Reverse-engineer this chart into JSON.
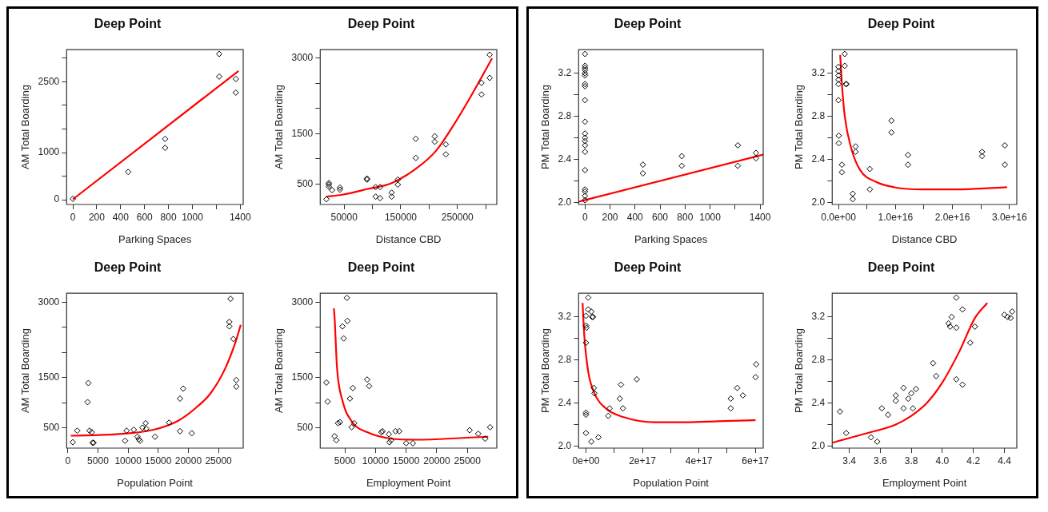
{
  "chart_data": [
    {
      "type": "scatter",
      "title": "Deep Point",
      "xlabel": "Parking Spaces",
      "ylabel": "AM Total Boarding",
      "marker": "diamond",
      "xlim": [
        -52,
        1425
      ],
      "ylim": [
        -100,
        3180
      ],
      "xticks": [
        0,
        200,
        400,
        600,
        800,
        1000,
        {
          "value": 1200,
          "label": null
        },
        1400
      ],
      "yticks": [
        0,
        {
          "value": 500,
          "label": null
        },
        1000,
        {
          "value": 1500,
          "label": null
        },
        {
          "value": 2000,
          "label": null
        },
        2500,
        {
          "value": 3000,
          "label": null
        }
      ],
      "series": [
        {
          "type": "scatter",
          "color": "#000000",
          "x": [
            0,
            463,
            772,
            772,
            1224,
            1224,
            1363,
            1363
          ],
          "values": [
            20,
            590,
            1290,
            1100,
            3090,
            2610,
            2560,
            2270
          ]
        },
        {
          "type": "line",
          "color": "#ff0000",
          "marker": "none",
          "x": [
            0,
            1386
          ],
          "values": [
            10,
            2730
          ]
        }
      ]
    },
    {
      "type": "scatter",
      "title": "Deep Point",
      "xlabel": "Distance CBD",
      "ylabel": "AM Total Boarding",
      "marker": "diamond",
      "xlim": [
        7800,
        319600
      ],
      "ylim": [
        95,
        3170
      ],
      "xticks": [
        50000,
        {
          "value": 100000,
          "label": null
        },
        150000,
        {
          "value": 200000,
          "label": null
        },
        250000,
        {
          "value": 300000,
          "label": null
        }
      ],
      "yticks": [
        500,
        {
          "value": 1000,
          "label": null
        },
        1500,
        {
          "value": 2000,
          "label": null
        },
        {
          "value": 2500,
          "label": null
        },
        3000
      ],
      "series": [
        {
          "type": "scatter",
          "color": "#000000",
          "x": [
            18700,
            23000,
            23000,
            23000,
            28700,
            42600,
            42600,
            90400,
            90400,
            105700,
            105700,
            113500,
            113500,
            133900,
            133900,
            144800,
            144800,
            176500,
            176500,
            210000,
            210000,
            229600,
            229600,
            292600,
            292600,
            307000,
            307000
          ],
          "values": [
            200,
            520,
            450,
            490,
            380,
            430,
            390,
            610,
            590,
            440,
            250,
            440,
            220,
            330,
            250,
            590,
            490,
            1400,
            1020,
            1450,
            1340,
            1290,
            1090,
            2510,
            2280,
            3070,
            2610
          ]
        },
        {
          "type": "line",
          "color": "#ff0000",
          "marker": "none",
          "x": [
            18700,
            47000,
            90400,
            133900,
            177400,
            212200,
            242600,
            273000,
            311300
          ],
          "values": [
            250,
            290,
            400,
            520,
            810,
            1160,
            1660,
            2230,
            3000
          ]
        }
      ]
    },
    {
      "type": "scatter",
      "title": "Deep Point",
      "xlabel": "Population Point",
      "ylabel": "AM Total Boarding",
      "marker": "diamond",
      "xlim": [
        -200,
        29100
      ],
      "ylim": [
        93,
        3180
      ],
      "xticks": [
        0,
        5000,
        10000,
        15000,
        20000,
        25000
      ],
      "yticks": [
        500,
        {
          "value": 1000,
          "label": null
        },
        1500,
        {
          "value": 2000,
          "label": null
        },
        {
          "value": 2500,
          "label": null
        },
        3000
      ],
      "series": [
        {
          "type": "scatter",
          "color": "#000000",
          "x": [
            820,
            1560,
            3280,
            3400,
            3600,
            3980,
            4100,
            4260,
            9500,
            9750,
            10940,
            11560,
            11760,
            11970,
            12380,
            12910,
            13000,
            14470,
            16800,
            18610,
            18610,
            19140,
            20570,
            26800,
            26800,
            27000,
            27460,
            27950,
            27950
          ],
          "values": [
            210,
            440,
            1010,
            1390,
            440,
            410,
            200,
            200,
            240,
            440,
            460,
            320,
            270,
            240,
            500,
            590,
            480,
            320,
            600,
            430,
            1080,
            1280,
            390,
            2610,
            2520,
            3070,
            2270,
            1450,
            1320
          ]
        },
        {
          "type": "line",
          "color": "#ff0000",
          "marker": "none",
          "x": [
            490,
            8070,
            14220,
            18320,
            21190,
            23650,
            26110,
            27750,
            28690
          ],
          "values": [
            340,
            370,
            460,
            640,
            890,
            1180,
            1680,
            2180,
            2550
          ]
        }
      ]
    },
    {
      "type": "scatter",
      "title": "Deep Point",
      "xlabel": "Employment Point",
      "ylabel": "AM Total Boarding",
      "marker": "diamond",
      "xlim": [
        968,
        29800
      ],
      "ylim": [
        93,
        3180
      ],
      "xticks": [
        5000,
        10000,
        15000,
        20000,
        25000
      ],
      "yticks": [
        500,
        {
          "value": 1000,
          "label": null
        },
        1500,
        {
          "value": 2000,
          "label": null
        },
        {
          "value": 2500,
          "label": null
        },
        3000
      ],
      "series": [
        {
          "type": "scatter",
          "color": "#000000",
          "x": [
            1980,
            2180,
            3310,
            3590,
            3870,
            4190,
            4600,
            4800,
            5320,
            5400,
            5810,
            6090,
            6290,
            6530,
            8630,
            8950,
            10970,
            11130,
            12180,
            12260,
            12540,
            13270,
            13870,
            15000,
            16090,
            25360,
            26770,
            27900,
            28710
          ],
          "values": [
            1400,
            1020,
            330,
            250,
            590,
            610,
            2520,
            2280,
            3090,
            2630,
            1080,
            510,
            1290,
            590,
            1460,
            1330,
            410,
            430,
            370,
            210,
            250,
            430,
            430,
            190,
            190,
            450,
            380,
            280,
            510
          ]
        },
        {
          "type": "line",
          "color": "#ff0000",
          "marker": "none",
          "x": [
            3190,
            3310,
            3710,
            4600,
            6210,
            8630,
            12660,
            16690,
            24760,
            28390
          ],
          "values": [
            2880,
            2700,
            1690,
            1040,
            610,
            410,
            280,
            260,
            300,
            320
          ]
        }
      ]
    },
    {
      "type": "scatter",
      "title": "Deep Point",
      "xlabel": "Parking Spaces",
      "ylabel": "PM Total Boarding",
      "marker": "diamond",
      "xlim": [
        -51,
        1425
      ],
      "ylim": [
        1.98,
        3.42
      ],
      "xticks": [
        0,
        200,
        400,
        600,
        800,
        1000,
        {
          "value": 1200,
          "label": null
        },
        1400
      ],
      "yticks": [
        {
          "value": 2,
          "label": "2.0"
        },
        {
          "value": 2.2,
          "label": null
        },
        2.4,
        {
          "value": 2.6,
          "label": null
        },
        2.8,
        {
          "value": 3,
          "label": null
        },
        3.2
      ],
      "series": [
        {
          "type": "scatter",
          "color": "#000000",
          "x": [
            0,
            0,
            0,
            0,
            0,
            0,
            0,
            0,
            0,
            0,
            0,
            0,
            0,
            0,
            0,
            0,
            0,
            0,
            0,
            0,
            463,
            463,
            774,
            774,
            1222,
            1222,
            1367,
            1367
          ],
          "values": [
            3.38,
            3.27,
            3.25,
            3.23,
            3.2,
            3.18,
            3.1,
            3.08,
            2.95,
            2.75,
            2.64,
            2.6,
            2.57,
            2.53,
            2.47,
            2.3,
            2.12,
            2.1,
            2.06,
            2.02,
            2.35,
            2.27,
            2.43,
            2.34,
            2.53,
            2.34,
            2.46,
            2.41
          ]
        },
        {
          "type": "line",
          "color": "#ff0000",
          "marker": "none",
          "x": [
            -51,
            1425
          ],
          "values": [
            2.006,
            2.444
          ]
        }
      ]
    },
    {
      "type": "scatter",
      "title": "Deep Point",
      "xlabel": "Distance CBD",
      "ylabel": "PM Total Boarding",
      "marker": "diamond",
      "xlim": [
        -1100000000000000.0,
        3.13e+16
      ],
      "ylim": [
        1.98,
        3.42
      ],
      "xticks": [
        {
          "value": 0,
          "label": "0.0e+00"
        },
        {
          "value": 5000000000000000.0,
          "label": null
        },
        {
          "value": 1e+16,
          "label": "1.0e+16"
        },
        {
          "value": 1.5e+16,
          "label": null
        },
        {
          "value": 2e+16,
          "label": "2.0e+16"
        },
        {
          "value": 2.5e+16,
          "label": null
        },
        {
          "value": 3e+16,
          "label": "3.0e+16"
        }
      ],
      "yticks": [
        {
          "value": 2,
          "label": "2.0"
        },
        {
          "value": 2.2,
          "label": null
        },
        2.4,
        {
          "value": 2.6,
          "label": null
        },
        2.8,
        {
          "value": 3,
          "label": null
        },
        3.2
      ],
      "series": [
        {
          "type": "scatter",
          "color": "#000000",
          "x": [
            0,
            0,
            0,
            0,
            0,
            0,
            50000000000000.0,
            50000000000000.0,
            600000000000000.0,
            600000000000000.0,
            1100000000000000.0,
            1100000000000000.0,
            1300000000000000.0,
            1400000000000000.0,
            3000000000000000.0,
            3000000000000000.0,
            2500000000000000.0,
            2500000000000000.0,
            5500000000000000.0,
            5500000000000000.0,
            9300000000000000.0,
            9300000000000000.0,
            1.22e+16,
            1.22e+16,
            2.52e+16,
            2.52e+16,
            2.92e+16,
            2.92e+16
          ],
          "values": [
            3.26,
            3.22,
            3.18,
            3.14,
            3.1,
            2.95,
            2.62,
            2.55,
            2.35,
            2.28,
            3.38,
            3.27,
            3.1,
            3.1,
            2.52,
            2.47,
            2.08,
            2.03,
            2.31,
            2.12,
            2.76,
            2.65,
            2.44,
            2.35,
            2.47,
            2.43,
            2.53,
            2.35
          ]
        },
        {
          "type": "line",
          "color": "#ff0000",
          "marker": "none",
          "x": [
            300000000000000.0,
            600000000000000.0,
            1100000000000000.0,
            2200000000000000.0,
            3800000000000000.0,
            6600000000000000.0,
            9800000000000000.0,
            1.47e+16,
            2.01e+16,
            2.55e+16,
            2.96e+16
          ],
          "values": [
            3.37,
            3.1,
            2.8,
            2.51,
            2.3,
            2.19,
            2.14,
            2.12,
            2.12,
            2.13,
            2.14
          ]
        }
      ]
    },
    {
      "type": "scatter",
      "title": "Deep Point",
      "xlabel": "Population Point",
      "ylabel": "PM Total Boarding",
      "marker": "diamond",
      "xlim": [
        -2.6e+16,
        6.28e+17
      ],
      "ylim": [
        1.98,
        3.42
      ],
      "xticks": [
        {
          "value": 0,
          "label": "0e+00"
        },
        {
          "value": 1e+17,
          "label": null
        },
        {
          "value": 2e+17,
          "label": "2e+17"
        },
        {
          "value": 3e+17,
          "label": null
        },
        {
          "value": 4e+17,
          "label": "4e+17"
        },
        {
          "value": 5e+17,
          "label": null
        },
        {
          "value": 6e+17,
          "label": "6e+17"
        }
      ],
      "yticks": [
        {
          "value": 2,
          "label": "2.0"
        },
        {
          "value": 2.2,
          "label": null
        },
        2.4,
        {
          "value": 2.6,
          "label": null
        },
        2.8,
        {
          "value": 3,
          "label": null
        },
        3.2
      ],
      "series": [
        {
          "type": "scatter",
          "color": "#000000",
          "x": [
            0,
            0,
            2000000000000000.0,
            0,
            0,
            0,
            0,
            8000000000000000.0,
            8000000000000000.0,
            1.9e+16,
            1.9e+16,
            2.2e+16,
            2.5e+16,
            2.8e+16,
            3e+16,
            4.4e+16,
            7.9e+16,
            8.4e+16,
            1.2e+17,
            1.24e+17,
            1.31e+17,
            1.8e+17,
            5.13e+17,
            5.13e+17,
            5.36e+17,
            5.56e+17,
            6.03e+17,
            6.01e+17
          ],
          "values": [
            3.21,
            3.12,
            3.1,
            2.96,
            2.31,
            2.29,
            2.12,
            3.38,
            3.27,
            2.04,
            3.25,
            3.2,
            3.2,
            2.54,
            2.49,
            2.08,
            2.28,
            2.35,
            2.44,
            2.57,
            2.35,
            2.62,
            2.44,
            2.35,
            2.54,
            2.47,
            2.76,
            2.64
          ]
        },
        {
          "type": "line",
          "color": "#ff0000",
          "marker": "none",
          "x": [
            -1.2e+16,
            -6000000000000000.0,
            8000000000000000.0,
            3e+16,
            7.5e+16,
            1.31e+17,
            2.44e+17,
            3.56e+17,
            4.69e+17,
            6.01e+17
          ],
          "values": [
            3.33,
            3.03,
            2.69,
            2.49,
            2.34,
            2.27,
            2.22,
            2.22,
            2.23,
            2.24
          ]
        }
      ]
    },
    {
      "type": "scatter",
      "title": "Deep Point",
      "xlabel": "Employment Point",
      "ylabel": "PM Total Boarding",
      "marker": "diamond",
      "xlim": [
        3.29,
        4.48
      ],
      "ylim": [
        1.98,
        3.42
      ],
      "xticks": [
        3.4,
        3.6,
        3.8,
        {
          "value": 4,
          "label": "4.0"
        },
        4.2,
        4.4
      ],
      "yticks": [
        {
          "value": 2,
          "label": "2.0"
        },
        {
          "value": 2.2,
          "label": null
        },
        2.4,
        {
          "value": 2.6,
          "label": null
        },
        2.8,
        {
          "value": 3,
          "label": null
        },
        3.2
      ],
      "series": [
        {
          "type": "scatter",
          "color": "#000000",
          "x": [
            3.34,
            3.38,
            3.54,
            3.58,
            3.61,
            3.65,
            3.7,
            3.7,
            3.75,
            3.75,
            3.78,
            3.8,
            3.81,
            3.83,
            3.94,
            3.96,
            4.04,
            4.05,
            4.06,
            4.09,
            4.09,
            4.09,
            4.13,
            4.13,
            4.18,
            4.21,
            4.4,
            4.42,
            4.44,
            4.45
          ],
          "values": [
            2.32,
            2.12,
            2.08,
            2.04,
            2.35,
            2.29,
            2.47,
            2.42,
            2.35,
            2.54,
            2.44,
            2.49,
            2.35,
            2.53,
            2.77,
            2.65,
            3.14,
            3.11,
            3.2,
            3.1,
            3.38,
            2.62,
            3.27,
            2.57,
            2.96,
            3.11,
            3.22,
            3.2,
            3.19,
            3.25
          ]
        },
        {
          "type": "line",
          "color": "#ff0000",
          "marker": "none",
          "x": [
            3.29,
            3.49,
            3.7,
            3.8,
            3.9,
            4.0,
            4.11,
            4.21,
            4.29
          ],
          "values": [
            2.03,
            2.11,
            2.2,
            2.28,
            2.4,
            2.59,
            2.88,
            3.19,
            3.33
          ]
        }
      ]
    }
  ]
}
